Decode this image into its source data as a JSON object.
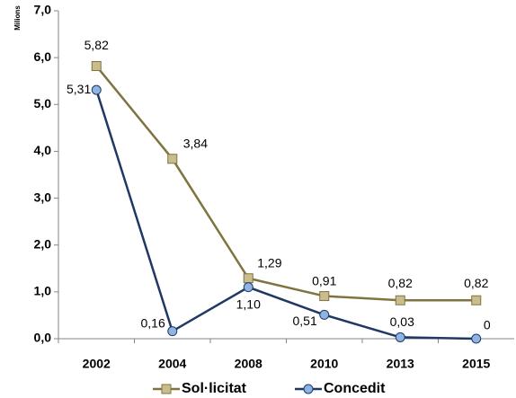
{
  "chart_data": {
    "type": "line",
    "y_label": "Milions",
    "categories": [
      "2002",
      "2004",
      "2008",
      "2010",
      "2013",
      "2015"
    ],
    "series": [
      {
        "name": "Sol·licitat",
        "color": "#7f7440",
        "marker": "square",
        "marker_color": "#c9bd8e",
        "values": [
          5.82,
          3.84,
          1.29,
          0.91,
          0.82,
          0.82
        ],
        "value_labels": [
          "5,82",
          "3,84",
          "1,29",
          "0,91",
          "0,82",
          "0,82"
        ]
      },
      {
        "name": "Concedit",
        "color": "#1f3864",
        "marker": "circle",
        "marker_color": "#8db4e2",
        "values": [
          5.31,
          0.16,
          1.1,
          0.51,
          0.03,
          0
        ],
        "value_labels": [
          "5,31",
          "0,16",
          "1,10",
          "0,51",
          "0,03",
          "0"
        ]
      }
    ],
    "ylim": [
      0,
      7
    ],
    "yticks": [
      {
        "value": 0,
        "label": "0,0"
      },
      {
        "value": 1,
        "label": "1,0"
      },
      {
        "value": 2,
        "label": "2,0"
      },
      {
        "value": 3,
        "label": "3,0"
      },
      {
        "value": 4,
        "label": "4,0"
      },
      {
        "value": 5,
        "label": "5,0"
      },
      {
        "value": 6,
        "label": "6,0"
      },
      {
        "value": 7,
        "label": "7,0"
      }
    ],
    "grid": false,
    "legend": "bottom"
  }
}
